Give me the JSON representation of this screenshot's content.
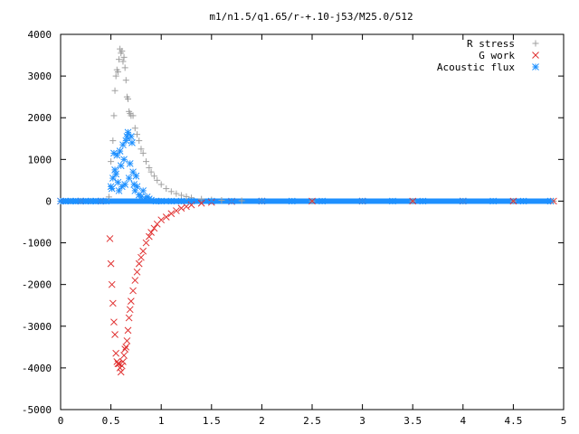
{
  "chart_data": {
    "type": "scatter",
    "title": "m1/n1.5/q1.65/r-+.10-j53/M25.0/512",
    "xlabel": "",
    "ylabel": "",
    "xlim": [
      0,
      5
    ],
    "ylim": [
      -5000,
      4000
    ],
    "x_ticks": [
      "0",
      "0.5",
      "1",
      "1.5",
      "2",
      "2.5",
      "3",
      "3.5",
      "4",
      "4.5",
      "5"
    ],
    "y_ticks": [
      "4000",
      "3000",
      "2000",
      "1000",
      "0",
      "-1000",
      "-2000",
      "-3000",
      "-4000",
      "-5000"
    ],
    "grid": false,
    "legend_position": "top-right",
    "series": [
      {
        "name": "R stress",
        "marker": "plus",
        "color": "#a0a0a0",
        "points": [
          [
            0.0,
            0
          ],
          [
            0.1,
            0
          ],
          [
            0.2,
            0
          ],
          [
            0.3,
            0
          ],
          [
            0.4,
            0
          ],
          [
            0.45,
            0
          ],
          [
            0.48,
            100
          ],
          [
            0.5,
            950
          ],
          [
            0.52,
            1450
          ],
          [
            0.53,
            2050
          ],
          [
            0.54,
            2650
          ],
          [
            0.55,
            3000
          ],
          [
            0.56,
            3150
          ],
          [
            0.57,
            3100
          ],
          [
            0.58,
            3400
          ],
          [
            0.59,
            3650
          ],
          [
            0.6,
            3550
          ],
          [
            0.61,
            3600
          ],
          [
            0.62,
            3350
          ],
          [
            0.63,
            3450
          ],
          [
            0.64,
            3200
          ],
          [
            0.65,
            2900
          ],
          [
            0.66,
            2500
          ],
          [
            0.67,
            2450
          ],
          [
            0.68,
            2150
          ],
          [
            0.69,
            2100
          ],
          [
            0.7,
            2050
          ],
          [
            0.72,
            2050
          ],
          [
            0.74,
            1750
          ],
          [
            0.76,
            1600
          ],
          [
            0.78,
            1450
          ],
          [
            0.8,
            1250
          ],
          [
            0.82,
            1150
          ],
          [
            0.85,
            950
          ],
          [
            0.88,
            800
          ],
          [
            0.9,
            700
          ],
          [
            0.93,
            600
          ],
          [
            0.96,
            500
          ],
          [
            1.0,
            400
          ],
          [
            1.05,
            300
          ],
          [
            1.1,
            230
          ],
          [
            1.15,
            180
          ],
          [
            1.2,
            140
          ],
          [
            1.25,
            110
          ],
          [
            1.3,
            80
          ],
          [
            1.4,
            50
          ],
          [
            1.5,
            30
          ],
          [
            1.6,
            20
          ],
          [
            1.8,
            10
          ],
          [
            2.0,
            5
          ],
          [
            2.5,
            0
          ],
          [
            3.0,
            0
          ],
          [
            3.5,
            0
          ],
          [
            4.0,
            0
          ],
          [
            4.5,
            0
          ],
          [
            4.9,
            0
          ]
        ]
      },
      {
        "name": "G work",
        "marker": "cross",
        "color": "#e03030",
        "points": [
          [
            0.0,
            0
          ],
          [
            0.2,
            0
          ],
          [
            0.4,
            0
          ],
          [
            0.49,
            -900
          ],
          [
            0.5,
            -1500
          ],
          [
            0.51,
            -2000
          ],
          [
            0.52,
            -2450
          ],
          [
            0.53,
            -2900
          ],
          [
            0.54,
            -3200
          ],
          [
            0.55,
            -3650
          ],
          [
            0.56,
            -3850
          ],
          [
            0.57,
            -3900
          ],
          [
            0.58,
            -3900
          ],
          [
            0.59,
            -4000
          ],
          [
            0.6,
            -4100
          ],
          [
            0.61,
            -3950
          ],
          [
            0.62,
            -3850
          ],
          [
            0.63,
            -3700
          ],
          [
            0.64,
            -3550
          ],
          [
            0.65,
            -3500
          ],
          [
            0.66,
            -3350
          ],
          [
            0.67,
            -3100
          ],
          [
            0.68,
            -2800
          ],
          [
            0.69,
            -2600
          ],
          [
            0.7,
            -2400
          ],
          [
            0.72,
            -2150
          ],
          [
            0.74,
            -1900
          ],
          [
            0.76,
            -1700
          ],
          [
            0.78,
            -1500
          ],
          [
            0.8,
            -1350
          ],
          [
            0.82,
            -1200
          ],
          [
            0.85,
            -1000
          ],
          [
            0.88,
            -850
          ],
          [
            0.9,
            -750
          ],
          [
            0.93,
            -650
          ],
          [
            0.96,
            -550
          ],
          [
            1.0,
            -450
          ],
          [
            1.05,
            -380
          ],
          [
            1.1,
            -300
          ],
          [
            1.15,
            -230
          ],
          [
            1.2,
            -170
          ],
          [
            1.25,
            -130
          ],
          [
            1.3,
            -90
          ],
          [
            1.4,
            -50
          ],
          [
            1.5,
            -30
          ],
          [
            1.7,
            -10
          ],
          [
            2.0,
            0
          ],
          [
            2.5,
            0
          ],
          [
            3.0,
            0
          ],
          [
            3.5,
            0
          ],
          [
            4.0,
            0
          ],
          [
            4.5,
            0
          ],
          [
            4.9,
            0
          ]
        ]
      },
      {
        "name": "Acoustic flux",
        "marker": "star",
        "color": "#1e90ff",
        "points": [
          [
            0.0,
            0
          ],
          [
            0.05,
            0
          ],
          [
            0.1,
            0
          ],
          [
            0.15,
            0
          ],
          [
            0.2,
            0
          ],
          [
            0.25,
            0
          ],
          [
            0.3,
            0
          ],
          [
            0.35,
            0
          ],
          [
            0.4,
            0
          ],
          [
            0.45,
            0
          ],
          [
            0.5,
            350
          ],
          [
            0.51,
            300
          ],
          [
            0.52,
            550
          ],
          [
            0.53,
            1150
          ],
          [
            0.54,
            750
          ],
          [
            0.55,
            650
          ],
          [
            0.56,
            1100
          ],
          [
            0.57,
            450
          ],
          [
            0.58,
            250
          ],
          [
            0.59,
            1200
          ],
          [
            0.6,
            850
          ],
          [
            0.61,
            350
          ],
          [
            0.62,
            1350
          ],
          [
            0.63,
            1000
          ],
          [
            0.64,
            400
          ],
          [
            0.65,
            1450
          ],
          [
            0.66,
            1550
          ],
          [
            0.67,
            1650
          ],
          [
            0.68,
            550
          ],
          [
            0.69,
            900
          ],
          [
            0.7,
            1550
          ],
          [
            0.71,
            1400
          ],
          [
            0.72,
            700
          ],
          [
            0.73,
            400
          ],
          [
            0.74,
            250
          ],
          [
            0.75,
            600
          ],
          [
            0.76,
            350
          ],
          [
            0.78,
            150
          ],
          [
            0.8,
            100
          ],
          [
            0.82,
            250
          ],
          [
            0.84,
            50
          ],
          [
            0.86,
            100
          ],
          [
            0.88,
            50
          ],
          [
            0.9,
            20
          ],
          [
            0.95,
            0
          ],
          [
            1.0,
            0
          ],
          [
            1.1,
            0
          ],
          [
            1.2,
            0
          ],
          [
            1.3,
            0
          ],
          [
            1.5,
            0
          ],
          [
            1.7,
            0
          ],
          [
            2.0,
            0
          ],
          [
            2.3,
            0
          ],
          [
            2.6,
            0
          ],
          [
            3.0,
            0
          ],
          [
            3.3,
            0
          ],
          [
            3.6,
            0
          ],
          [
            4.0,
            0
          ],
          [
            4.3,
            0
          ],
          [
            4.6,
            0
          ],
          [
            4.87,
            0
          ]
        ]
      }
    ]
  }
}
